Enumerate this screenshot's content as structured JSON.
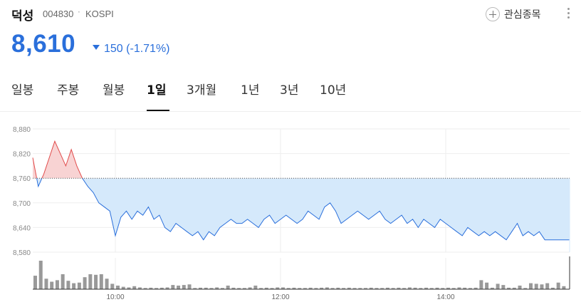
{
  "stock": {
    "name": "덕성",
    "code": "004830",
    "separator": "·",
    "market": "KOSPI",
    "price": "8,610",
    "change": "150",
    "change_pct": "(-1.71%)",
    "direction": "down",
    "colors": {
      "down": "#2a6fdb",
      "up": "#e14b4b",
      "area_down": "#d5e9fb",
      "area_up": "#f8d3d3"
    }
  },
  "actions": {
    "favorite_label": "관심종목",
    "favorite_icon": "plus-circle-icon",
    "more_icon": "more-vertical-icon"
  },
  "tabs": [
    {
      "label": "일봉",
      "active": false
    },
    {
      "label": "주봉",
      "active": false
    },
    {
      "label": "월봉",
      "active": false
    },
    {
      "label": "1일",
      "active": true
    },
    {
      "label": "3개월",
      "active": false
    },
    {
      "label": "1년",
      "active": false
    },
    {
      "label": "3년",
      "active": false
    },
    {
      "label": "10년",
      "active": false
    }
  ],
  "chart_data": {
    "type": "line",
    "reference_value": 8760,
    "ylim": [
      8580,
      8880
    ],
    "yticks": [
      "8,880",
      "8,820",
      "8,760",
      "8,700",
      "8,640",
      "8,580"
    ],
    "xtick_labels": [
      "10:00",
      "12:00",
      "14:00"
    ],
    "xtick_times": [
      "10:00",
      "12:00",
      "14:00"
    ],
    "time_range": [
      "09:00",
      "15:30"
    ],
    "grid": true,
    "series": [
      {
        "times": [
          "09:00",
          "09:04",
          "09:08",
          "09:12",
          "09:16",
          "09:20",
          "09:24",
          "09:28",
          "09:32",
          "09:36",
          "09:40",
          "09:44",
          "09:48",
          "09:52",
          "09:56",
          "10:00",
          "10:04",
          "10:08",
          "10:12",
          "10:16",
          "10:20",
          "10:24",
          "10:28",
          "10:32",
          "10:36",
          "10:40",
          "10:44",
          "10:48",
          "10:52",
          "10:56",
          "11:00",
          "11:04",
          "11:08",
          "11:12",
          "11:16",
          "11:20",
          "11:24",
          "11:28",
          "11:32",
          "11:36",
          "11:40",
          "11:44",
          "11:48",
          "11:52",
          "11:56",
          "12:00",
          "12:04",
          "12:08",
          "12:12",
          "12:16",
          "12:20",
          "12:24",
          "12:28",
          "12:32",
          "12:36",
          "12:40",
          "12:44",
          "12:48",
          "12:52",
          "12:56",
          "13:00",
          "13:04",
          "13:08",
          "13:12",
          "13:16",
          "13:20",
          "13:24",
          "13:28",
          "13:32",
          "13:36",
          "13:40",
          "13:44",
          "13:48",
          "13:52",
          "13:56",
          "14:00",
          "14:04",
          "14:08",
          "14:12",
          "14:16",
          "14:20",
          "14:24",
          "14:28",
          "14:32",
          "14:36",
          "14:40",
          "14:44",
          "14:48",
          "14:52",
          "14:56",
          "15:00",
          "15:04",
          "15:08",
          "15:12",
          "15:16",
          "15:20",
          "15:30"
        ],
        "values": [
          8810,
          8740,
          8770,
          8810,
          8850,
          8820,
          8790,
          8830,
          8790,
          8760,
          8740,
          8725,
          8700,
          8690,
          8680,
          8620,
          8665,
          8680,
          8660,
          8680,
          8670,
          8690,
          8660,
          8670,
          8640,
          8630,
          8650,
          8640,
          8630,
          8620,
          8630,
          8610,
          8630,
          8620,
          8640,
          8650,
          8660,
          8650,
          8650,
          8660,
          8650,
          8640,
          8660,
          8670,
          8650,
          8660,
          8670,
          8660,
          8650,
          8660,
          8680,
          8670,
          8660,
          8690,
          8700,
          8680,
          8650,
          8660,
          8670,
          8680,
          8670,
          8660,
          8670,
          8680,
          8660,
          8650,
          8660,
          8670,
          8650,
          8660,
          8640,
          8660,
          8650,
          8640,
          8660,
          8650,
          8640,
          8630,
          8620,
          8640,
          8630,
          8620,
          8630,
          8620,
          8630,
          8620,
          8610,
          8630,
          8650,
          8620,
          8630,
          8620,
          8630,
          8610,
          8610,
          8610,
          8610
        ]
      }
    ],
    "volume": {
      "times": [
        "09:00",
        "09:04",
        "09:08",
        "09:12",
        "09:16",
        "09:20",
        "09:24",
        "09:28",
        "09:32",
        "09:36",
        "09:40",
        "09:44",
        "09:48",
        "09:52",
        "09:56",
        "10:00",
        "10:04",
        "10:08",
        "10:12",
        "10:16",
        "10:20",
        "10:24",
        "10:28",
        "10:32",
        "10:36",
        "10:40",
        "10:44",
        "10:48",
        "10:52",
        "10:56",
        "11:00",
        "11:04",
        "11:08",
        "11:12",
        "11:16",
        "11:20",
        "11:24",
        "11:28",
        "11:32",
        "11:36",
        "11:40",
        "11:44",
        "11:48",
        "11:52",
        "11:56",
        "12:00",
        "12:04",
        "12:08",
        "12:12",
        "12:16",
        "12:20",
        "12:24",
        "12:28",
        "12:32",
        "12:36",
        "12:40",
        "12:44",
        "12:48",
        "12:52",
        "12:56",
        "13:00",
        "13:04",
        "13:08",
        "13:12",
        "13:16",
        "13:20",
        "13:24",
        "13:28",
        "13:32",
        "13:36",
        "13:40",
        "13:44",
        "13:48",
        "13:52",
        "13:56",
        "14:00",
        "14:04",
        "14:08",
        "14:12",
        "14:16",
        "14:20",
        "14:24",
        "14:28",
        "14:32",
        "14:36",
        "14:40",
        "14:44",
        "14:48",
        "14:52",
        "14:56",
        "15:00",
        "15:04",
        "15:08",
        "15:12",
        "15:16",
        "15:20",
        "15:24"
      ],
      "values": [
        45,
        95,
        35,
        25,
        30,
        50,
        28,
        20,
        22,
        40,
        50,
        48,
        50,
        35,
        18,
        12,
        8,
        6,
        10,
        6,
        4,
        5,
        4,
        5,
        6,
        14,
        12,
        14,
        16,
        4,
        5,
        5,
        4,
        6,
        4,
        12,
        5,
        4,
        4,
        6,
        12,
        4,
        5,
        4,
        6,
        6,
        4,
        5,
        4,
        4,
        5,
        4,
        5,
        6,
        4,
        5,
        4,
        5,
        4,
        4,
        4,
        5,
        4,
        4,
        5,
        4,
        5,
        4,
        6,
        5,
        4,
        5,
        4,
        5,
        4,
        5,
        4,
        6,
        5,
        4,
        5,
        30,
        22,
        5,
        18,
        14,
        5,
        5,
        12,
        4,
        20,
        18,
        16,
        20,
        5,
        22,
        10
      ]
    }
  }
}
